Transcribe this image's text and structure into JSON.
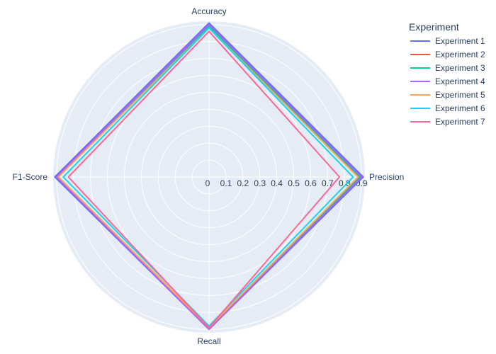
{
  "chart_data": {
    "type": "radar",
    "theta": [
      "Accuracy",
      "Precision",
      "Recall",
      "F1-Score"
    ],
    "r_range": [
      0,
      0.9
    ],
    "r_ticks": [
      "0",
      "0.1",
      "0.2",
      "0.3",
      "0.4",
      "0.5",
      "0.6",
      "0.7",
      "0.8",
      "0.9"
    ],
    "legend_title": "Experiment",
    "legend_position": "top-right",
    "grid": true,
    "background_color": "#e5ecf6",
    "series": [
      {
        "name": "Experiment 1",
        "color": "#636efa",
        "values": [
          0.91,
          0.91,
          0.9,
          0.91
        ]
      },
      {
        "name": "Experiment 2",
        "color": "#ef553b",
        "values": [
          0.9,
          0.89,
          0.9,
          0.9
        ]
      },
      {
        "name": "Experiment 3",
        "color": "#00cc96",
        "values": [
          0.89,
          0.89,
          0.89,
          0.89
        ]
      },
      {
        "name": "Experiment 4",
        "color": "#ab63fa",
        "values": [
          0.9,
          0.9,
          0.9,
          0.9
        ]
      },
      {
        "name": "Experiment 5",
        "color": "#ffa15a",
        "values": [
          0.88,
          0.88,
          0.89,
          0.89
        ]
      },
      {
        "name": "Experiment 6",
        "color": "#19d3f3",
        "values": [
          0.88,
          0.85,
          0.88,
          0.86
        ]
      },
      {
        "name": "Experiment 7",
        "color": "#ff6692",
        "values": [
          0.86,
          0.77,
          0.89,
          0.83
        ]
      }
    ]
  }
}
